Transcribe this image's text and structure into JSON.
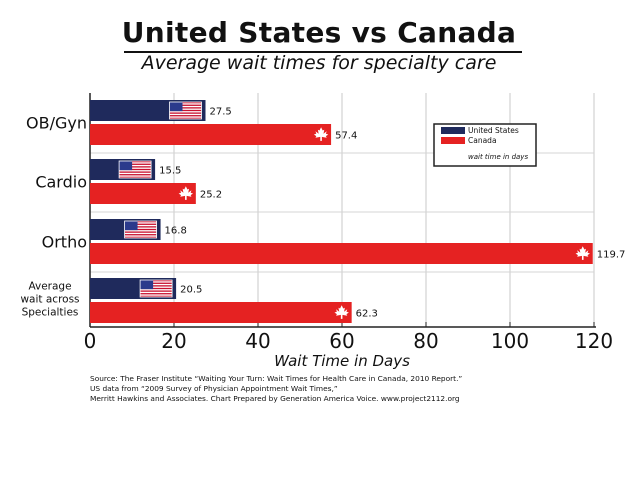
{
  "chart_data": {
    "type": "bar",
    "orientation": "horizontal",
    "title": "United States vs Canada",
    "subtitle": "Average wait times for specialty care",
    "xlabel": "Wait Time in Days",
    "ylabel": "",
    "xlim": [
      0,
      120
    ],
    "xticks": [
      "0",
      "20",
      "40",
      "60",
      "80",
      "100",
      "120"
    ],
    "grid": "vertical",
    "categories": [
      "OB/Gyn",
      "Cardio",
      "Ortho",
      "Average wait across Specialties"
    ],
    "category_lines": [
      [
        "OB/Gyn"
      ],
      [
        "Cardio"
      ],
      [
        "Ortho"
      ],
      [
        "Average",
        "wait across",
        "Specialties"
      ]
    ],
    "series": [
      {
        "name": "United States",
        "color": "#1f2a5c",
        "icon": "us-flag-icon",
        "values": [
          27.5,
          15.5,
          16.8,
          20.5
        ],
        "labels": [
          "27.5",
          "15.5",
          "16.8",
          "20.5"
        ]
      },
      {
        "name": "Canada",
        "color": "#e52222",
        "icon": "maple-leaf-icon",
        "values": [
          57.4,
          25.2,
          119.7,
          62.3
        ],
        "labels": [
          "57.4",
          "25.2",
          "119.7",
          "62.3"
        ]
      }
    ],
    "legend": {
      "position": "top-right",
      "note": "wait time in days"
    }
  },
  "source_lines": [
    "Source: The Fraser Institute “Waiting Your Turn: Wait Times for Health Care in Canada, 2010 Report.”",
    "US data from “2009 Survey of Physician Appointment Wait Times,”",
    "Merritt Hawkins and Associates. Chart Prepared by Generation America Voice. www.project2112.org"
  ]
}
